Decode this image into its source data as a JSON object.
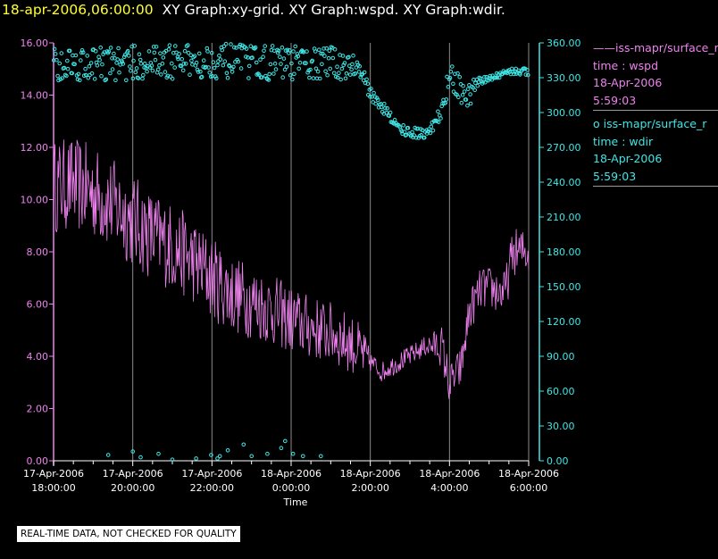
{
  "title": {
    "date": "18-apr-2006,06:00:00",
    "rest": "XY Graph:xy-grid.  XY Graph:wspd.  XY Graph:wdir."
  },
  "legend": {
    "series1": {
      "marker": "——",
      "name": "iss-mapr/surface_r",
      "line2": "time : wspd",
      "line3": "18-Apr-2006",
      "line4": "5:59:03"
    },
    "series2": {
      "marker": "o",
      "name": "iss-mapr/surface_r",
      "line2": "time : wdir",
      "line3": "18-Apr-2006",
      "line4": "5:59:03"
    }
  },
  "footer": {
    "quality_note": "REAL-TIME DATA, NOT CHECKED FOR QUALITY"
  },
  "chart_data": {
    "type": "line",
    "title": "XY Graph:xy-grid.  XY Graph:wspd.  XY Graph:wdir.",
    "xlabel": "Time",
    "x_range_hours": [
      -12.0,
      0.0
    ],
    "x_ticks": [
      {
        "h": -12,
        "line1": "17-Apr-2006",
        "line2": "18:00:00"
      },
      {
        "h": -10,
        "line1": "17-Apr-2006",
        "line2": "20:00:00"
      },
      {
        "h": -8,
        "line1": "17-Apr-2006",
        "line2": "22:00:00"
      },
      {
        "h": -6,
        "line1": "18-Apr-2006",
        "line2": "0:00:00"
      },
      {
        "h": -4,
        "line1": "18-Apr-2006",
        "line2": "2:00:00"
      },
      {
        "h": -2,
        "line1": "18-Apr-2006",
        "line2": "4:00:00"
      },
      {
        "h": 0,
        "line1": "18-Apr-2006",
        "line2": "6:00:00"
      }
    ],
    "y_left": {
      "range": [
        0,
        16
      ],
      "ticks": [
        "0.00",
        "2.00",
        "4.00",
        "6.00",
        "8.00",
        "10.00",
        "12.00",
        "14.00",
        "16.00"
      ],
      "color": "#ee82ee"
    },
    "y_right": {
      "range": [
        0,
        360
      ],
      "ticks": [
        "0.00",
        "30.00",
        "60.00",
        "90.00",
        "120.00",
        "150.00",
        "180.00",
        "210.00",
        "240.00",
        "270.00",
        "300.00",
        "330.00",
        "360.00"
      ],
      "color": "#40e6e6"
    },
    "series": [
      {
        "name": "wspd",
        "axis": "left",
        "style": "line",
        "color": "#ee82ee",
        "trend": [
          [
            -12.0,
            10.5
          ],
          [
            -11.5,
            10.6
          ],
          [
            -11.0,
            10.3
          ],
          [
            -10.5,
            9.8
          ],
          [
            -10.0,
            9.2
          ],
          [
            -9.5,
            8.6
          ],
          [
            -9.0,
            8.2
          ],
          [
            -8.5,
            7.7
          ],
          [
            -8.0,
            7.0
          ],
          [
            -7.5,
            6.4
          ],
          [
            -7.0,
            6.1
          ],
          [
            -6.5,
            5.8
          ],
          [
            -6.0,
            5.4
          ],
          [
            -5.5,
            5.1
          ],
          [
            -5.0,
            4.9
          ],
          [
            -4.5,
            4.5
          ],
          [
            -4.0,
            3.8
          ],
          [
            -3.7,
            3.4
          ],
          [
            -3.5,
            3.6
          ],
          [
            -3.0,
            4.0
          ],
          [
            -2.6,
            4.4
          ],
          [
            -2.2,
            4.4
          ],
          [
            -2.0,
            2.9
          ],
          [
            -1.7,
            3.6
          ],
          [
            -1.5,
            5.7
          ],
          [
            -1.2,
            6.6
          ],
          [
            -1.0,
            6.6
          ],
          [
            -0.6,
            6.4
          ],
          [
            -0.4,
            8.0
          ],
          [
            0.0,
            8.0
          ]
        ],
        "noise": [
          [
            -12.0,
            1.8
          ],
          [
            -10.0,
            1.8
          ],
          [
            -8.0,
            1.6
          ],
          [
            -6.0,
            1.3
          ],
          [
            -4.2,
            1.1
          ],
          [
            -4.0,
            0.4
          ],
          [
            -2.6,
            0.4
          ],
          [
            -2.2,
            0.8
          ],
          [
            -1.5,
            0.8
          ],
          [
            -0.5,
            0.9
          ],
          [
            0.0,
            0.9
          ]
        ]
      },
      {
        "name": "wdir",
        "axis": "right",
        "style": "scatter",
        "color": "#40e6e6",
        "trend": [
          [
            -12.0,
            338
          ],
          [
            -10.0,
            338
          ],
          [
            -8.0,
            340
          ],
          [
            -6.0,
            338
          ],
          [
            -4.6,
            338
          ],
          [
            -4.3,
            335
          ],
          [
            -4.0,
            315
          ],
          [
            -3.6,
            300
          ],
          [
            -3.3,
            285
          ],
          [
            -2.8,
            280
          ],
          [
            -2.5,
            283
          ],
          [
            -2.2,
            300
          ],
          [
            -2.0,
            325
          ],
          [
            -1.8,
            320
          ],
          [
            -1.6,
            305
          ],
          [
            -1.3,
            325
          ],
          [
            -1.0,
            328
          ],
          [
            -0.5,
            335
          ],
          [
            0.0,
            334
          ]
        ],
        "noise": [
          [
            -12.0,
            30
          ],
          [
            -6.5,
            30
          ],
          [
            -4.5,
            28
          ],
          [
            -4.0,
            10
          ],
          [
            -2.3,
            10
          ],
          [
            -2.0,
            25
          ],
          [
            -1.6,
            25
          ],
          [
            -1.2,
            6
          ],
          [
            0.0,
            6
          ]
        ],
        "outliers": [
          [
            -10.62,
            5
          ],
          [
            -10.0,
            8
          ],
          [
            -9.8,
            3
          ],
          [
            -9.35,
            6
          ],
          [
            -9.0,
            1
          ],
          [
            -8.4,
            2
          ],
          [
            -8.02,
            5
          ],
          [
            -7.86,
            2
          ],
          [
            -7.8,
            4
          ],
          [
            -7.6,
            9
          ],
          [
            -7.2,
            14
          ],
          [
            -7.0,
            4
          ],
          [
            -6.6,
            6
          ],
          [
            -6.25,
            11
          ],
          [
            -6.15,
            17
          ],
          [
            -5.95,
            6
          ],
          [
            -5.7,
            4
          ],
          [
            -5.25,
            4
          ]
        ]
      }
    ]
  }
}
